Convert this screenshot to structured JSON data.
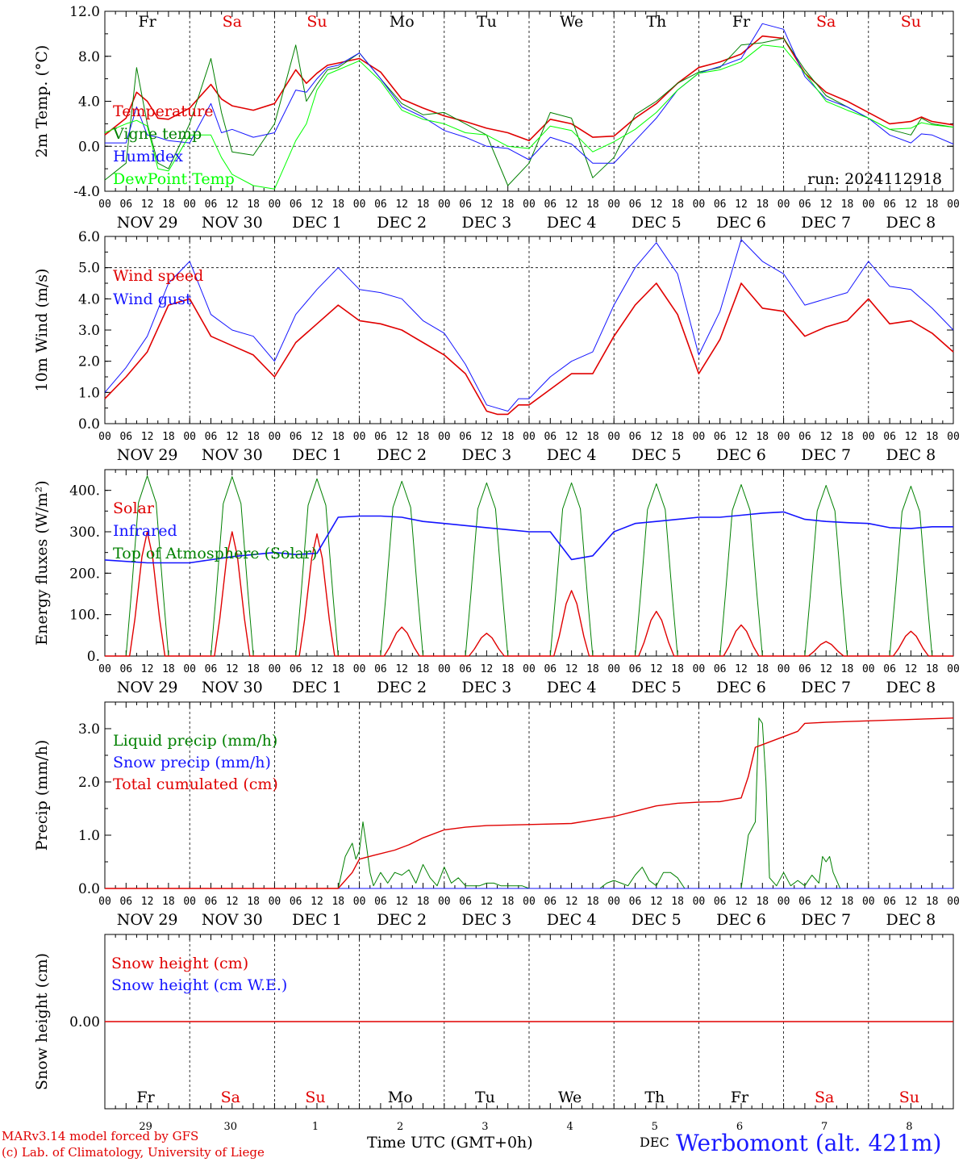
{
  "run_label": "run: 2024112918",
  "hour_ticks": [
    "00",
    "06",
    "12",
    "18"
  ],
  "final_tick": "00",
  "date_labels": [
    "NOV 29",
    "NOV 30",
    "DEC  1",
    "DEC  2",
    "DEC  3",
    "DEC  4",
    "DEC  5",
    "DEC  6",
    "DEC  7",
    "DEC  8"
  ],
  "weekdays": [
    {
      "label": "Fr",
      "color": "#000000"
    },
    {
      "label": "Sa",
      "color": "#e00000"
    },
    {
      "label": "Su",
      "color": "#e00000"
    },
    {
      "label": "Mo",
      "color": "#000000"
    },
    {
      "label": "Tu",
      "color": "#000000"
    },
    {
      "label": "We",
      "color": "#000000"
    },
    {
      "label": "Th",
      "color": "#000000"
    },
    {
      "label": "Fr",
      "color": "#000000"
    },
    {
      "label": "Sa",
      "color": "#e00000"
    },
    {
      "label": "Su",
      "color": "#e00000"
    }
  ],
  "day_numbers": [
    "29",
    "30",
    "1",
    "2",
    "3",
    "4",
    "5",
    "6",
    "7",
    "8"
  ],
  "footer": {
    "model": "MARv3.14 model forced by GFS",
    "credit": "(c) Lab. of Climatology, University of Liege",
    "xlabel": "Time UTC (GMT+0h)",
    "month": "DEC",
    "station": "Werbomont (alt. 421m)"
  },
  "chart_data": [
    {
      "type": "line",
      "ylabel": "2m Temp. (°C)",
      "ylim": [
        -4,
        12
      ],
      "yticks": [
        "-4.0",
        "0.0",
        "4.0",
        "8.0",
        "12.0"
      ],
      "ytick_values": [
        -4,
        0,
        4,
        8,
        12
      ],
      "ref_lines": [
        0
      ],
      "x": [
        0,
        6,
        9,
        12,
        15,
        18,
        24,
        30,
        33,
        36,
        42,
        48,
        54,
        57,
        60,
        63,
        66,
        72,
        78,
        84,
        90,
        96,
        102,
        108,
        114,
        120,
        126,
        132,
        138,
        144,
        150,
        156,
        162,
        168,
        174,
        180,
        186,
        192,
        198,
        204,
        210,
        216,
        222,
        228,
        231,
        234,
        240
      ],
      "x_unit": "hours since NOV 29 00 UTC",
      "series": [
        {
          "name": "Temperature",
          "color": "#e00000",
          "width": 1.6,
          "values": [
            1.0,
            2.5,
            4.8,
            4.0,
            2.5,
            2.4,
            3.4,
            5.5,
            4.2,
            3.6,
            3.2,
            3.8,
            6.8,
            5.6,
            6.5,
            7.2,
            7.4,
            7.8,
            6.6,
            4.2,
            3.4,
            2.7,
            2.2,
            1.6,
            1.2,
            0.5,
            2.4,
            2.0,
            0.8,
            0.9,
            2.5,
            3.8,
            5.6,
            7.0,
            7.5,
            8.2,
            9.8,
            9.6,
            6.5,
            4.8,
            4.0,
            3.0,
            2.0,
            2.2,
            2.6,
            2.2,
            1.9
          ]
        },
        {
          "name": "Vigne temp",
          "color": "#008000",
          "width": 1.0,
          "values": [
            -3.0,
            -1.5,
            7.0,
            2.0,
            -1.5,
            -2.0,
            2.0,
            7.8,
            3.0,
            -0.5,
            -0.8,
            2.0,
            9.0,
            4.0,
            5.5,
            6.8,
            7.0,
            8.3,
            6.0,
            3.8,
            2.8,
            3.0,
            2.0,
            1.0,
            -3.5,
            -1.5,
            3.0,
            2.5,
            -2.8,
            -1.0,
            2.8,
            4.0,
            5.6,
            6.6,
            7.0,
            9.0,
            9.2,
            9.6,
            6.8,
            4.5,
            3.5,
            2.5,
            1.5,
            1.0,
            2.5,
            2.0,
            1.7
          ]
        },
        {
          "name": "Humidex",
          "color": "#1414ff",
          "width": 1.0,
          "values": [
            0.3,
            0.3,
            3.5,
            1.0,
            0.8,
            0.5,
            0.3,
            3.8,
            1.2,
            1.5,
            0.8,
            1.2,
            5.0,
            4.8,
            6.0,
            7.0,
            7.2,
            8.3,
            6.0,
            3.5,
            2.6,
            1.4,
            0.8,
            0.0,
            -0.2,
            -1.2,
            0.8,
            0.2,
            -1.5,
            -1.5,
            0.5,
            2.5,
            5.0,
            6.5,
            7.1,
            7.8,
            10.9,
            10.4,
            6.2,
            4.2,
            3.5,
            2.5,
            1.0,
            0.3,
            1.1,
            1.0,
            0.2
          ]
        },
        {
          "name": "DewPoint Temp",
          "color": "#00ff00",
          "width": 1.0,
          "values": [
            1.2,
            2.0,
            2.3,
            1.8,
            -2.0,
            -2.2,
            1.0,
            1.0,
            -1.0,
            -2.5,
            -3.5,
            -3.8,
            0.5,
            2.0,
            5.0,
            6.4,
            6.8,
            7.6,
            5.8,
            3.2,
            2.4,
            2.0,
            1.2,
            1.0,
            0.0,
            -0.2,
            1.8,
            1.4,
            -0.5,
            0.4,
            1.5,
            3.0,
            5.0,
            6.5,
            6.8,
            7.5,
            9.0,
            8.8,
            6.5,
            4.0,
            3.2,
            2.5,
            1.5,
            1.6,
            2.1,
            1.9,
            1.7
          ]
        }
      ]
    },
    {
      "type": "line",
      "ylabel": "10m Wind (m/s)",
      "ylim": [
        0,
        6
      ],
      "yticks": [
        "0.0",
        "1.0",
        "2.0",
        "3.0",
        "4.0",
        "5.0",
        "6.0"
      ],
      "ytick_values": [
        0,
        1,
        2,
        3,
        4,
        5,
        6
      ],
      "ref_lines": [
        5
      ],
      "x": [
        0,
        6,
        12,
        18,
        24,
        30,
        36,
        42,
        48,
        54,
        60,
        66,
        72,
        78,
        84,
        90,
        96,
        102,
        108,
        111,
        114,
        117,
        120,
        126,
        132,
        138,
        144,
        150,
        156,
        162,
        168,
        174,
        180,
        186,
        192,
        198,
        204,
        210,
        216,
        222,
        228,
        234,
        240
      ],
      "x_unit": "hours since NOV 29 00 UTC",
      "series": [
        {
          "name": "Wind speed",
          "color": "#e00000",
          "width": 1.6,
          "values": [
            0.8,
            1.5,
            2.3,
            3.8,
            4.0,
            2.8,
            2.5,
            2.2,
            1.5,
            2.6,
            3.2,
            3.8,
            3.3,
            3.2,
            3.0,
            2.6,
            2.2,
            1.6,
            0.4,
            0.3,
            0.3,
            0.6,
            0.6,
            1.1,
            1.6,
            1.6,
            2.8,
            3.8,
            4.5,
            3.5,
            1.6,
            2.7,
            4.5,
            3.7,
            3.6,
            2.8,
            3.1,
            3.3,
            4.0,
            3.2,
            3.3,
            2.9,
            2.3
          ]
        },
        {
          "name": "Wind gust",
          "color": "#1414ff",
          "width": 1.0,
          "values": [
            1.0,
            1.8,
            2.8,
            4.5,
            5.2,
            3.5,
            3.0,
            2.8,
            2.0,
            3.5,
            4.3,
            5.0,
            4.3,
            4.2,
            4.0,
            3.3,
            2.9,
            1.9,
            0.6,
            0.5,
            0.4,
            0.8,
            0.8,
            1.5,
            2.0,
            2.3,
            3.8,
            5.0,
            5.8,
            4.8,
            2.2,
            3.6,
            5.9,
            5.2,
            4.8,
            3.8,
            4.0,
            4.2,
            5.2,
            4.4,
            4.3,
            3.7,
            3.0
          ]
        }
      ]
    },
    {
      "type": "line",
      "ylabel": "Energy fluxes (W/m²)",
      "ylim": [
        0,
        450
      ],
      "yticks": [
        "0.",
        "100.",
        "200.",
        "300.",
        "400."
      ],
      "ytick_values": [
        0,
        100,
        200,
        300,
        400
      ],
      "ref_lines": [],
      "x_unit": "hours since NOV 29 00 UTC",
      "solar_peaks": [
        300,
        300,
        295,
        70,
        55,
        158,
        108,
        75,
        35,
        60
      ],
      "toa_peaks": [
        435,
        433,
        428,
        422,
        418,
        418,
        416,
        414,
        412,
        410
      ],
      "infrared": {
        "x": [
          0,
          12,
          24,
          36,
          48,
          54,
          60,
          66,
          72,
          78,
          84,
          90,
          96,
          102,
          108,
          114,
          120,
          126,
          132,
          138,
          144,
          150,
          156,
          162,
          168,
          174,
          180,
          186,
          192,
          198,
          204,
          210,
          216,
          222,
          228,
          234,
          240
        ],
        "values": [
          232,
          225,
          225,
          240,
          250,
          245,
          248,
          335,
          338,
          338,
          335,
          325,
          320,
          315,
          310,
          305,
          300,
          300,
          233,
          242,
          300,
          320,
          325,
          330,
          335,
          335,
          340,
          345,
          348,
          330,
          325,
          322,
          320,
          310,
          308,
          312,
          312
        ]
      },
      "series": [
        {
          "name": "Solar",
          "color": "#e00000",
          "width": 1.4
        },
        {
          "name": "Infrared",
          "color": "#1414ff",
          "width": 1.6
        },
        {
          "name": "Top of Atmosphere (Solar)",
          "color": "#008000",
          "width": 1.0
        }
      ]
    },
    {
      "type": "line",
      "ylabel": "Precip (mm/h)",
      "ylim": [
        0,
        3.5
      ],
      "yticks": [
        "0.0",
        "1.0",
        "2.0",
        "3.0"
      ],
      "ytick_values": [
        0,
        1,
        2,
        3
      ],
      "ref_lines": [],
      "x_unit": "hours since NOV 29 00 UTC",
      "series": [
        {
          "name": "Liquid precip (mm/h)",
          "color": "#008000",
          "width": 1.0,
          "x": [
            0,
            66,
            68,
            70,
            71,
            72,
            73,
            74,
            75,
            76,
            78,
            80,
            82,
            84,
            86,
            88,
            90,
            92,
            94,
            96,
            98,
            100,
            102,
            104,
            106,
            108,
            110,
            112,
            114,
            116,
            118,
            120,
            140,
            142,
            144,
            146,
            148,
            150,
            152,
            154,
            156,
            158,
            160,
            162,
            164,
            180,
            182,
            184,
            185,
            186,
            187,
            188,
            190,
            192,
            194,
            196,
            198,
            200,
            202,
            203,
            204,
            205,
            206,
            208,
            240
          ],
          "values": [
            0,
            0,
            0.6,
            0.85,
            0.55,
            0.7,
            1.25,
            0.8,
            0.3,
            0.05,
            0.3,
            0.1,
            0.3,
            0.25,
            0.35,
            0.1,
            0.45,
            0.2,
            0.05,
            0.4,
            0.1,
            0.2,
            0.05,
            0.05,
            0.05,
            0.1,
            0.1,
            0.05,
            0.05,
            0.05,
            0.05,
            0.0,
            0.0,
            0.1,
            0.15,
            0.1,
            0.05,
            0.25,
            0.4,
            0.15,
            0.05,
            0.3,
            0.3,
            0.2,
            0.0,
            0.0,
            1.0,
            1.25,
            3.2,
            3.1,
            2.0,
            0.2,
            0.05,
            0.3,
            0.05,
            0.15,
            0.05,
            0.25,
            0.1,
            0.6,
            0.5,
            0.6,
            0.3,
            0.0,
            0.0
          ]
        },
        {
          "name": "Snow precip (mm/h)",
          "color": "#1414ff",
          "width": 1.0,
          "x": [
            0,
            240
          ],
          "values": [
            0,
            0
          ]
        },
        {
          "name": "Total cumulated (cm)",
          "color": "#e00000",
          "width": 1.4,
          "x": [
            0,
            66,
            70,
            72,
            76,
            82,
            86,
            90,
            96,
            102,
            108,
            120,
            132,
            144,
            150,
            156,
            162,
            168,
            174,
            180,
            182,
            184,
            186,
            190,
            196,
            198,
            204,
            240
          ],
          "values": [
            0,
            0,
            0.3,
            0.55,
            0.62,
            0.72,
            0.82,
            0.95,
            1.1,
            1.15,
            1.18,
            1.2,
            1.22,
            1.35,
            1.45,
            1.55,
            1.6,
            1.62,
            1.63,
            1.7,
            2.1,
            2.65,
            2.7,
            2.8,
            2.95,
            3.1,
            3.12,
            3.2
          ]
        }
      ]
    },
    {
      "type": "line",
      "ylabel": "Snow height (cm)",
      "yticks": [
        "0.00"
      ],
      "ytick_values": [
        0
      ],
      "ylim": [
        -1,
        1
      ],
      "ref_lines": [],
      "x_unit": "hours since NOV 29 00 UTC",
      "series": [
        {
          "name": "Snow height (cm)",
          "color": "#e00000",
          "width": 1.4,
          "x": [
            0,
            240
          ],
          "values": [
            0,
            0
          ]
        },
        {
          "name": "Snow height (cm W.E.)",
          "color": "#1414ff",
          "width": 1.0,
          "x": [],
          "values": []
        }
      ]
    }
  ]
}
